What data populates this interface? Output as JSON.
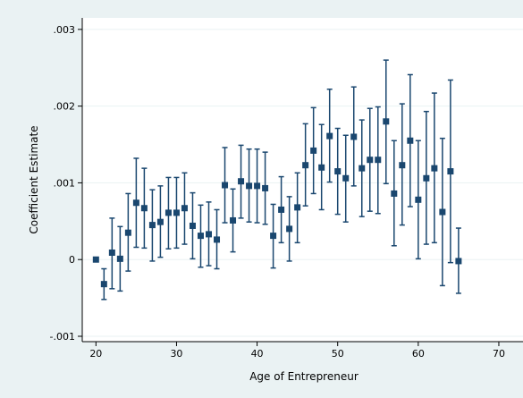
{
  "chart_data": {
    "type": "scatter",
    "title": "",
    "xlabel": "Age of Entrepreneur",
    "ylabel": "Coefficient Estimate",
    "xlim": [
      18.3,
      73
    ],
    "ylim": [
      -0.00107,
      0.00315
    ],
    "xticks": [
      20,
      30,
      40,
      50,
      60,
      70
    ],
    "xtick_labels": [
      "20",
      "30",
      "40",
      "50",
      "60",
      "70"
    ],
    "yticks": [
      -0.001,
      0,
      0.001,
      0.002,
      0.003
    ],
    "ytick_labels": [
      "-.001",
      "0",
      ".001",
      ".002",
      ".003"
    ],
    "grid": true,
    "legend": "none",
    "colors": {
      "marker": "#1a476f",
      "grid": "#eaf2f3",
      "background": "#eaf2f3",
      "plot_background": "#ffffff"
    },
    "points": [
      {
        "x": 20,
        "y": 0.0,
        "lo": 0.0,
        "hi": 0.0
      },
      {
        "x": 21,
        "y": -0.00032,
        "lo": -0.00052,
        "hi": -0.00012
      },
      {
        "x": 22,
        "y": 9e-05,
        "lo": -0.00038,
        "hi": 0.00054
      },
      {
        "x": 23,
        "y": 1e-05,
        "lo": -0.00041,
        "hi": 0.00043
      },
      {
        "x": 24,
        "y": 0.00035,
        "lo": -0.00015,
        "hi": 0.00086
      },
      {
        "x": 25,
        "y": 0.00074,
        "lo": 0.00016,
        "hi": 0.00132
      },
      {
        "x": 26,
        "y": 0.00067,
        "lo": 0.00015,
        "hi": 0.00119
      },
      {
        "x": 27,
        "y": 0.00045,
        "lo": -2e-05,
        "hi": 0.00091
      },
      {
        "x": 28,
        "y": 0.00049,
        "lo": 3e-05,
        "hi": 0.00096
      },
      {
        "x": 29,
        "y": 0.00061,
        "lo": 0.00014,
        "hi": 0.00107
      },
      {
        "x": 30,
        "y": 0.00061,
        "lo": 0.00015,
        "hi": 0.00107
      },
      {
        "x": 31,
        "y": 0.00067,
        "lo": 0.0002,
        "hi": 0.00113
      },
      {
        "x": 32,
        "y": 0.00044,
        "lo": 1e-05,
        "hi": 0.00087
      },
      {
        "x": 33,
        "y": 0.00031,
        "lo": -0.0001,
        "hi": 0.00071
      },
      {
        "x": 34,
        "y": 0.00033,
        "lo": -8e-05,
        "hi": 0.00075
      },
      {
        "x": 35,
        "y": 0.00026,
        "lo": -0.00012,
        "hi": 0.00065
      },
      {
        "x": 36,
        "y": 0.00097,
        "lo": 0.00048,
        "hi": 0.00146
      },
      {
        "x": 37,
        "y": 0.00051,
        "lo": 0.0001,
        "hi": 0.00092
      },
      {
        "x": 38,
        "y": 0.00102,
        "lo": 0.00054,
        "hi": 0.00149
      },
      {
        "x": 39,
        "y": 0.00096,
        "lo": 0.00049,
        "hi": 0.00144
      },
      {
        "x": 40,
        "y": 0.00096,
        "lo": 0.00048,
        "hi": 0.00144
      },
      {
        "x": 41,
        "y": 0.00093,
        "lo": 0.00046,
        "hi": 0.0014
      },
      {
        "x": 42,
        "y": 0.00031,
        "lo": -0.00011,
        "hi": 0.00072
      },
      {
        "x": 43,
        "y": 0.00065,
        "lo": 0.00022,
        "hi": 0.00108
      },
      {
        "x": 44,
        "y": 0.0004,
        "lo": -2e-05,
        "hi": 0.00082
      },
      {
        "x": 45,
        "y": 0.00068,
        "lo": 0.00022,
        "hi": 0.00113
      },
      {
        "x": 46,
        "y": 0.00123,
        "lo": 0.0007,
        "hi": 0.00177
      },
      {
        "x": 47,
        "y": 0.00142,
        "lo": 0.00086,
        "hi": 0.00198
      },
      {
        "x": 48,
        "y": 0.0012,
        "lo": 0.00065,
        "hi": 0.00176
      },
      {
        "x": 49,
        "y": 0.00161,
        "lo": 0.00101,
        "hi": 0.00222
      },
      {
        "x": 50,
        "y": 0.00115,
        "lo": 0.00059,
        "hi": 0.00171
      },
      {
        "x": 51,
        "y": 0.00106,
        "lo": 0.00049,
        "hi": 0.00162
      },
      {
        "x": 52,
        "y": 0.0016,
        "lo": 0.00096,
        "hi": 0.00225
      },
      {
        "x": 53,
        "y": 0.00119,
        "lo": 0.00056,
        "hi": 0.00182
      },
      {
        "x": 54,
        "y": 0.0013,
        "lo": 0.00063,
        "hi": 0.00197
      },
      {
        "x": 55,
        "y": 0.0013,
        "lo": 0.0006,
        "hi": 0.00199
      },
      {
        "x": 56,
        "y": 0.0018,
        "lo": 0.00099,
        "hi": 0.0026
      },
      {
        "x": 57,
        "y": 0.00086,
        "lo": 0.00018,
        "hi": 0.00155
      },
      {
        "x": 58,
        "y": 0.00123,
        "lo": 0.00045,
        "hi": 0.00203
      },
      {
        "x": 59,
        "y": 0.00155,
        "lo": 0.00069,
        "hi": 0.00241
      },
      {
        "x": 60,
        "y": 0.00078,
        "lo": 1e-05,
        "hi": 0.00155
      },
      {
        "x": 61,
        "y": 0.00106,
        "lo": 0.0002,
        "hi": 0.00193
      },
      {
        "x": 62,
        "y": 0.00119,
        "lo": 0.00022,
        "hi": 0.00217
      },
      {
        "x": 63,
        "y": 0.00062,
        "lo": -0.00034,
        "hi": 0.00158
      },
      {
        "x": 64,
        "y": 0.00115,
        "lo": -4e-05,
        "hi": 0.00234
      },
      {
        "x": 65,
        "y": -2e-05,
        "lo": -0.00044,
        "hi": 0.00041
      }
    ]
  }
}
